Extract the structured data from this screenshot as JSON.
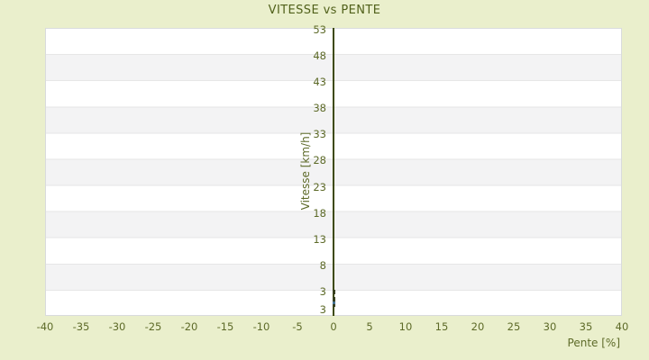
{
  "chart_data": {
    "type": "scatter",
    "title": "VITESSE vs PENTE",
    "xlabel": "Pente [%]",
    "ylabel": "Vitesse [km/h]",
    "xlim": [
      -40,
      40
    ],
    "ylim": [
      -2,
      53
    ],
    "grid": "horizontal-bands",
    "legend": "none",
    "x_ticks": [
      -40,
      -35,
      -30,
      -25,
      -20,
      -15,
      -10,
      -5,
      0,
      5,
      10,
      15,
      20,
      25,
      30,
      35,
      40
    ],
    "y_ticks": [
      53,
      48,
      43,
      38,
      33,
      28,
      23,
      18,
      13,
      8,
      3
    ],
    "y_axis_bottom_label": "3",
    "series": [
      {
        "name": "vitesse-points",
        "marker": "square",
        "color_key": "point_dark",
        "points": [
          {
            "x": 0,
            "y": 2.8
          },
          {
            "x": 0,
            "y": 2.4
          },
          {
            "x": 0,
            "y": 1.4
          },
          {
            "x": 0,
            "y": 0.9
          },
          {
            "x": 0,
            "y": 0.0
          }
        ]
      },
      {
        "name": "vitesse-point-highlight",
        "marker": "square",
        "color_key": "point_blue",
        "points": [
          {
            "x": 0,
            "y": 0.45
          }
        ]
      }
    ],
    "colors": {
      "background": "#eaefcc",
      "band_light": "#ffffff",
      "band_dark": "#f3f3f4",
      "plot_border": "#d9dbdd",
      "axis_line": "#3e4a08",
      "text": "#5d6a28",
      "title_text": "#50601a",
      "point_dark": "#373f1f",
      "point_blue": "#44708d"
    }
  }
}
